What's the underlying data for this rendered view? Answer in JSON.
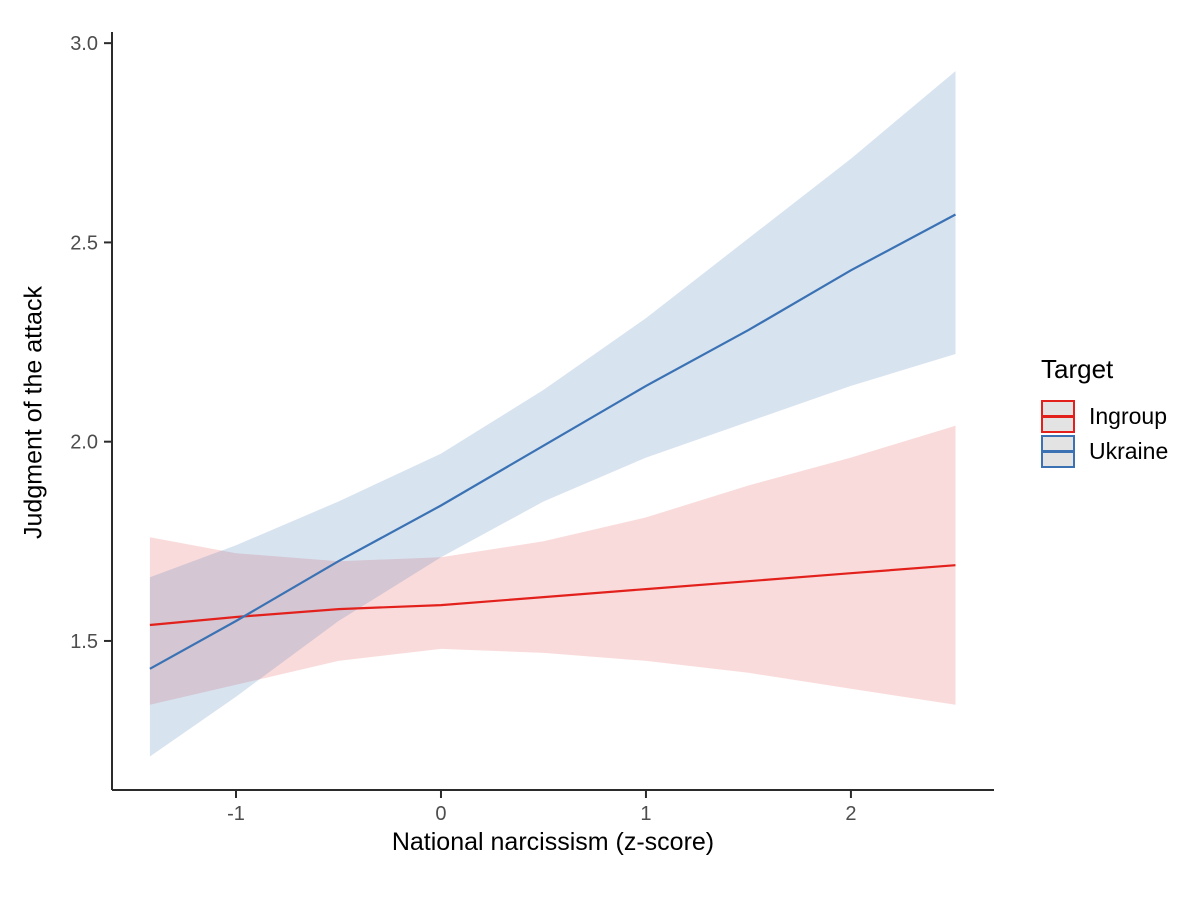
{
  "figure": {
    "background": "#FFFFFF",
    "axis_line_color": "#2B2B2B",
    "tick_label_color": "#4D4D4D"
  },
  "chart_data": {
    "type": "line",
    "title": "",
    "xlabel": "National narcissism (z-score)",
    "ylabel": "Judgment of the attack",
    "grid": false,
    "xlim": [
      -1.605,
      2.698
    ],
    "ylim": [
      1.126,
      3.028
    ],
    "x_ticks": [
      {
        "value": -1,
        "label": "-1"
      },
      {
        "value": 0,
        "label": "0"
      },
      {
        "value": 1,
        "label": "1"
      },
      {
        "value": 2,
        "label": "2"
      }
    ],
    "y_ticks": [
      {
        "value": 1.5,
        "label": "1.5"
      },
      {
        "value": 2.0,
        "label": "2.0"
      },
      {
        "value": 2.5,
        "label": "2.5"
      },
      {
        "value": 3.0,
        "label": "3.0"
      }
    ],
    "legend": {
      "title": "Target",
      "position": "right",
      "entries": [
        {
          "label": "Ingroup",
          "color": "#E3211C"
        },
        {
          "label": "Ukraine",
          "color": "#3A72B4"
        }
      ]
    },
    "series": [
      {
        "name": "Ingroup",
        "color": "#E3211C",
        "ribbon_opacity": 0.16,
        "x": [
          -1.42,
          -1.0,
          -0.5,
          0.0,
          0.5,
          1.0,
          1.5,
          2.0,
          2.51
        ],
        "y": [
          1.54,
          1.56,
          1.58,
          1.59,
          1.61,
          1.63,
          1.65,
          1.67,
          1.69
        ],
        "ci_lower": [
          1.34,
          1.39,
          1.45,
          1.48,
          1.47,
          1.45,
          1.42,
          1.38,
          1.34
        ],
        "ci_upper": [
          1.76,
          1.72,
          1.7,
          1.71,
          1.75,
          1.81,
          1.89,
          1.96,
          2.04
        ]
      },
      {
        "name": "Ukraine",
        "color": "#3A72B4",
        "ribbon_opacity": 0.2,
        "x": [
          -1.42,
          -1.0,
          -0.5,
          0.0,
          0.5,
          1.0,
          1.5,
          2.0,
          2.51
        ],
        "y": [
          1.43,
          1.55,
          1.7,
          1.84,
          1.99,
          2.14,
          2.28,
          2.43,
          2.57
        ],
        "ci_lower": [
          1.21,
          1.36,
          1.55,
          1.71,
          1.85,
          1.96,
          2.05,
          2.14,
          2.22
        ],
        "ci_upper": [
          1.66,
          1.74,
          1.85,
          1.97,
          2.13,
          2.31,
          2.51,
          2.71,
          2.93
        ]
      }
    ]
  }
}
